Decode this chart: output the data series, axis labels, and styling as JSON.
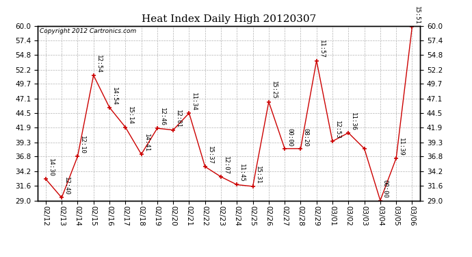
{
  "title": "Heat Index Daily High 20120307",
  "copyright": "Copyright 2012 Cartronics.com",
  "dates": [
    "02/12",
    "02/13",
    "02/14",
    "02/15",
    "02/16",
    "02/17",
    "02/18",
    "02/19",
    "02/20",
    "02/21",
    "02/22",
    "02/23",
    "02/24",
    "02/25",
    "02/26",
    "02/27",
    "02/28",
    "02/29",
    "03/01",
    "03/02",
    "03/03",
    "03/04",
    "03/05",
    "03/06"
  ],
  "values": [
    32.8,
    29.5,
    36.8,
    51.2,
    45.5,
    42.0,
    37.2,
    41.8,
    41.5,
    44.5,
    35.0,
    33.2,
    31.8,
    31.5,
    46.5,
    38.2,
    38.2,
    53.8,
    39.5,
    41.0,
    38.2,
    29.0,
    36.5,
    59.8
  ],
  "labels": [
    "14:30",
    "12:40",
    "12:10",
    "12:54",
    "14:54",
    "15:14",
    "14:41",
    "12:46",
    "12:01",
    "11:34",
    "15:37",
    "12:07",
    "11:45",
    "15:31",
    "15:25",
    "00:00",
    "08:20",
    "11:57",
    "12:53",
    "11:36",
    "",
    "00:00",
    "11:39",
    "15:51"
  ],
  "ylim": [
    29.0,
    60.0
  ],
  "yticks": [
    29.0,
    31.6,
    34.2,
    36.8,
    39.3,
    41.9,
    44.5,
    47.1,
    49.7,
    52.2,
    54.8,
    57.4,
    60.0
  ],
  "line_color": "#cc0000",
  "marker_color": "#cc0000",
  "bg_color": "#ffffff",
  "grid_color": "#aaaaaa",
  "title_fontsize": 11,
  "label_fontsize": 6.5,
  "tick_fontsize": 7.5,
  "copyright_fontsize": 6.5
}
